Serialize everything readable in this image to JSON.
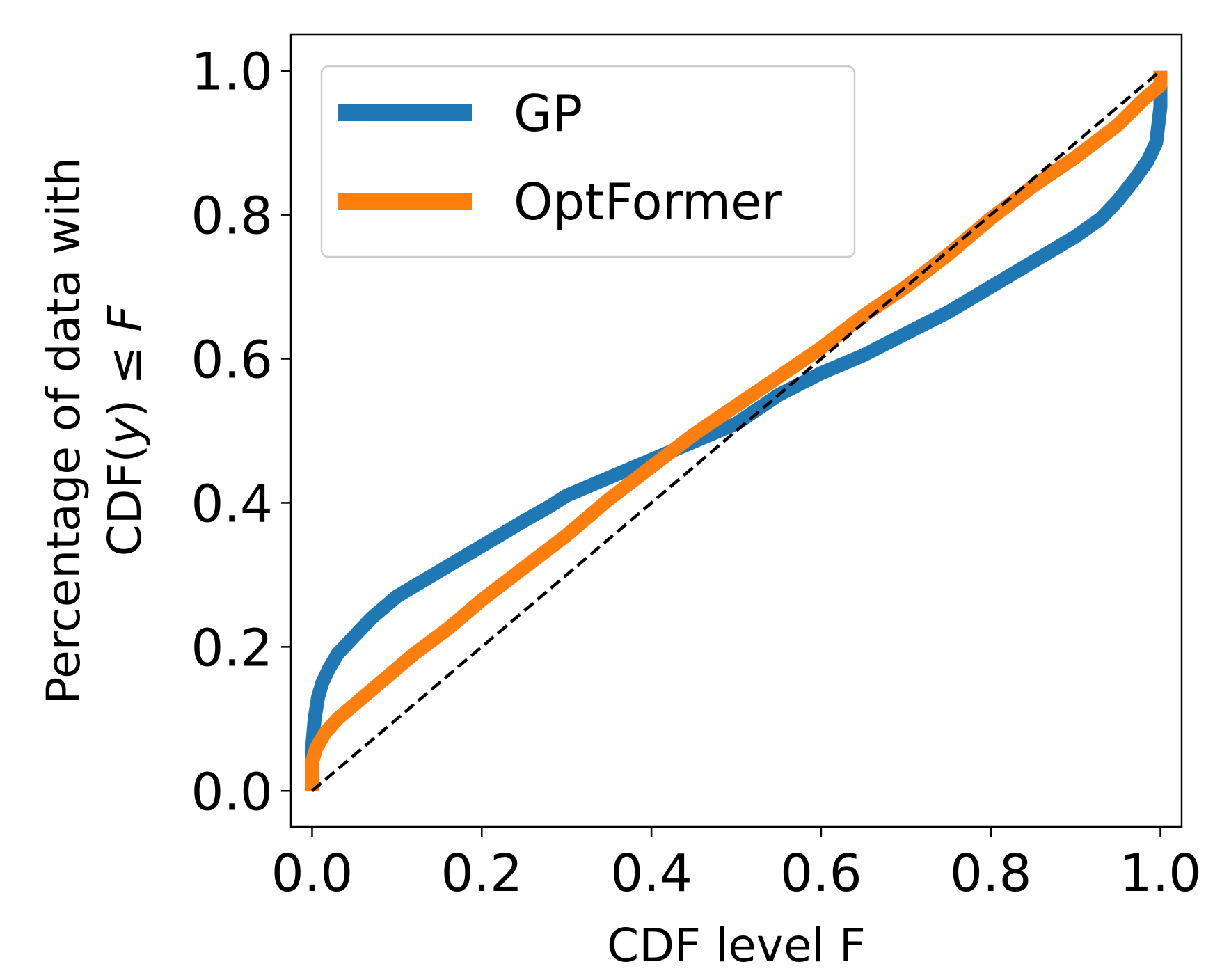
{
  "chart_data": {
    "type": "line",
    "xlabel": "CDF level F",
    "ylabel_line1": "Percentage of data with",
    "ylabel_line2_prefix": "CDF(",
    "ylabel_line2_var": "y",
    "ylabel_line2_mid": ") ≤ ",
    "ylabel_line2_end": "F",
    "xlim": [
      -0.025,
      1.025
    ],
    "ylim": [
      -0.05,
      1.05
    ],
    "xticks": [
      0.0,
      0.2,
      0.4,
      0.6,
      0.8,
      1.0
    ],
    "xtick_labels": [
      "0.0",
      "0.2",
      "0.4",
      "0.6",
      "0.8",
      "1.0"
    ],
    "yticks": [
      0.0,
      0.2,
      0.4,
      0.6,
      0.8,
      1.0
    ],
    "ytick_labels": [
      "0.0",
      "0.2",
      "0.4",
      "0.6",
      "0.8",
      "1.0"
    ],
    "legend_position": "top-left",
    "grid": false,
    "series": [
      {
        "name": "GP",
        "color": "#1f77b4",
        "x": [
          0.0,
          0.0,
          0.003,
          0.007,
          0.012,
          0.02,
          0.03,
          0.05,
          0.07,
          0.1,
          0.15,
          0.2,
          0.25,
          0.28,
          0.3,
          0.35,
          0.4,
          0.45,
          0.5,
          0.55,
          0.6,
          0.65,
          0.7,
          0.75,
          0.8,
          0.85,
          0.9,
          0.93,
          0.95,
          0.97,
          0.985,
          0.995,
          0.998,
          1.0,
          1.0
        ],
        "y": [
          0.0,
          0.06,
          0.1,
          0.13,
          0.15,
          0.17,
          0.19,
          0.215,
          0.24,
          0.27,
          0.305,
          0.34,
          0.375,
          0.395,
          0.41,
          0.435,
          0.46,
          0.485,
          0.51,
          0.55,
          0.58,
          0.605,
          0.635,
          0.665,
          0.7,
          0.735,
          0.77,
          0.795,
          0.82,
          0.85,
          0.875,
          0.9,
          0.93,
          0.95,
          1.0
        ]
      },
      {
        "name": "OptFormer",
        "color": "#ff7f0e",
        "x": [
          0.0,
          0.0,
          0.005,
          0.015,
          0.03,
          0.05,
          0.08,
          0.12,
          0.16,
          0.2,
          0.25,
          0.3,
          0.35,
          0.4,
          0.45,
          0.5,
          0.55,
          0.6,
          0.65,
          0.7,
          0.75,
          0.8,
          0.85,
          0.9,
          0.95,
          0.98,
          1.0,
          1.0
        ],
        "y": [
          0.0,
          0.04,
          0.06,
          0.08,
          0.1,
          0.12,
          0.15,
          0.19,
          0.225,
          0.265,
          0.31,
          0.355,
          0.405,
          0.45,
          0.495,
          0.535,
          0.575,
          0.615,
          0.66,
          0.7,
          0.745,
          0.795,
          0.84,
          0.88,
          0.925,
          0.96,
          0.98,
          1.0
        ]
      }
    ],
    "reference_line": {
      "style": "dashed",
      "color": "#000000",
      "x": [
        0.0,
        1.0
      ],
      "y": [
        0.0,
        1.0
      ]
    }
  }
}
